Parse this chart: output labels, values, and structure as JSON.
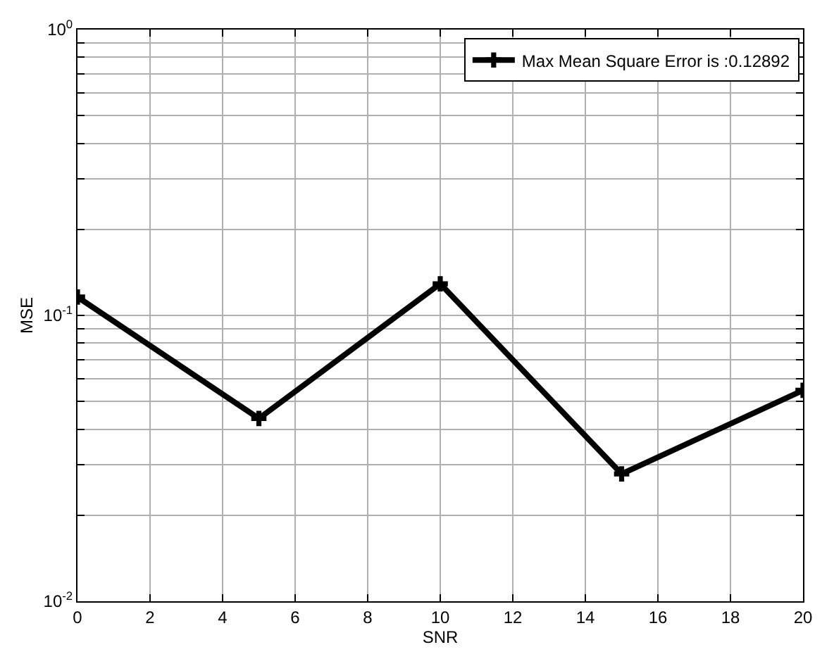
{
  "chart_data": {
    "type": "line",
    "xlabel": "SNR",
    "ylabel": "MSE",
    "x": [
      0,
      5,
      10,
      15,
      20
    ],
    "series": [
      {
        "name": "Max Mean Square Error is :0.12892",
        "color": "#000000",
        "values": [
          0.116,
          0.0436,
          0.129,
          0.0279,
          0.0547
        ]
      }
    ],
    "xlim": [
      0,
      20
    ],
    "xticks": [
      0,
      2,
      4,
      6,
      8,
      10,
      12,
      14,
      16,
      18,
      20
    ],
    "ylim": [
      0.01,
      1
    ],
    "yticks": [
      {
        "value": 0.01,
        "label": "10$^{-2}$"
      },
      {
        "value": 0.02,
        "label": null
      },
      {
        "value": 0.03,
        "label": null
      },
      {
        "value": 0.04,
        "label": null
      },
      {
        "value": 0.05,
        "label": null
      },
      {
        "value": 0.06,
        "label": null
      },
      {
        "value": 0.07,
        "label": null
      },
      {
        "value": 0.08,
        "label": null
      },
      {
        "value": 0.09,
        "label": null
      },
      {
        "value": 0.1,
        "label": "10$^{-1}$"
      },
      {
        "value": 0.2,
        "label": null
      },
      {
        "value": 0.3,
        "label": null
      },
      {
        "value": 0.4,
        "label": null
      },
      {
        "value": 0.5,
        "label": null
      },
      {
        "value": 0.6,
        "label": null
      },
      {
        "value": 0.7,
        "label": null
      },
      {
        "value": 0.8,
        "label": null
      },
      {
        "value": 0.9,
        "label": null
      },
      {
        "value": 1,
        "label": "10$^{0}$"
      }
    ],
    "log": "y",
    "grid": true,
    "legend": "top right",
    "marker": "cross",
    "line_style": "solid"
  }
}
